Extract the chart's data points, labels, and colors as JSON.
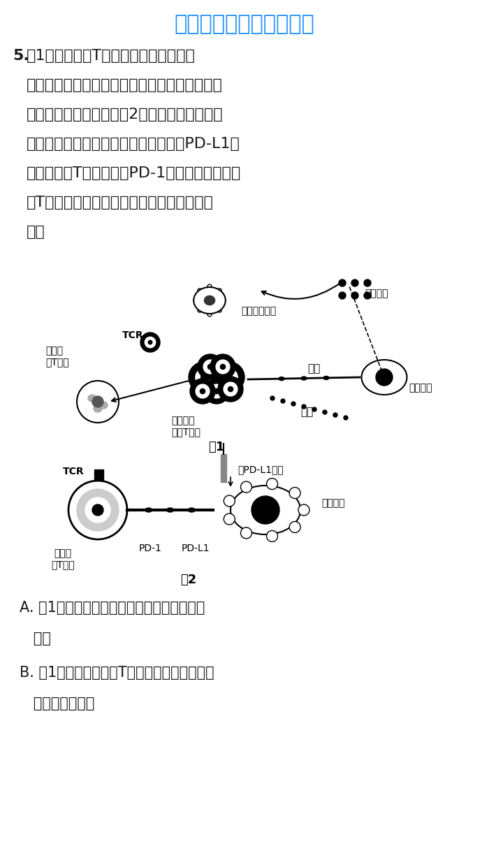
{
  "bg_color": "#ffffff",
  "title_watermark": "微信公众号关注趣找答案",
  "title_watermark_color": "#1E90FF",
  "question_number": "5.",
  "question_text_line1": "图1为细胞毒性T细胞通过表面受体识别",
  "question_text_line2": "抗原呈递细胞呈递的信号分子后被激活，进而攻",
  "question_text_line3": "击肿瘤细胞的示意图。图2为肿瘤细胞的一种免",
  "question_text_line4": "疫逃逸机制示意图。肿瘤细胞大量表达PD-L1，",
  "question_text_line5": "与细胞毒性T细胞表面的PD-1结合，抑制细胞毒",
  "question_text_line6": "性T细胞活化，从而逃避攻击。下列说法错误",
  "question_text_line7": "的是",
  "answer_A_line1": "A. 图1中抗原呈递细胞通过胞吞方式摄取肿瘤",
  "answer_A_line2": "   抗原",
  "answer_B_line1": "B. 图1中新的细胞毒性T细胞只能识别带有同样",
  "answer_B_line2": "   抗原的肿瘤细胞",
  "fig1_label": "图1",
  "fig2_label": "图2",
  "text_color": "#1a1a1a",
  "line_color": "#000000",
  "font_size_question": 16,
  "font_size_answer": 16
}
